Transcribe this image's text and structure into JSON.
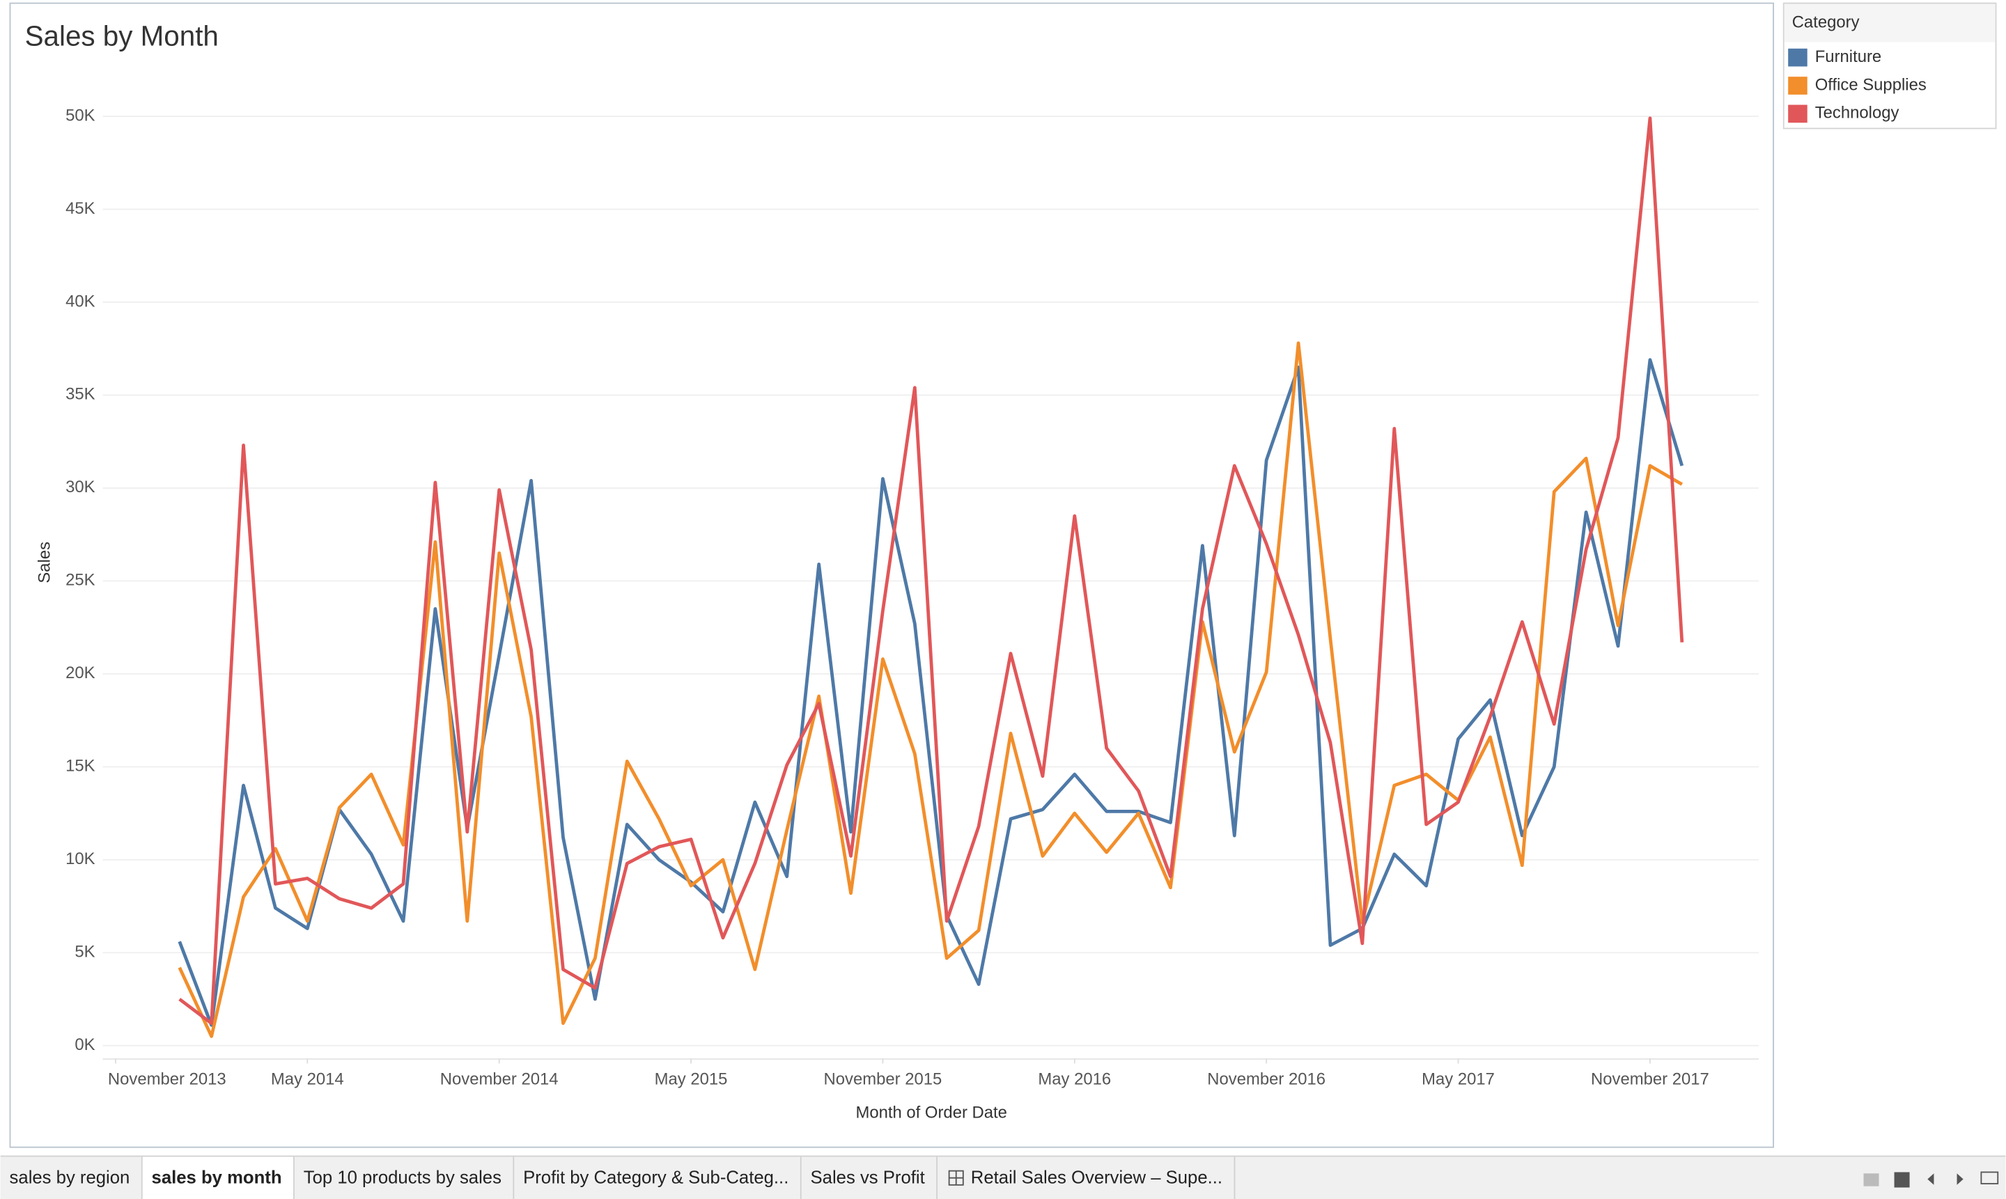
{
  "chart_data": {
    "type": "line",
    "title": "Sales by Month",
    "x_label": "Month of Order Date",
    "y_label": "Sales",
    "legend_title": "Category",
    "legend": "top-right",
    "grid": true,
    "x": [
      "2014-01",
      "2014-02",
      "2014-03",
      "2014-04",
      "2014-05",
      "2014-06",
      "2014-07",
      "2014-08",
      "2014-09",
      "2014-10",
      "2014-11",
      "2014-12",
      "2015-01",
      "2015-02",
      "2015-03",
      "2015-04",
      "2015-05",
      "2015-06",
      "2015-07",
      "2015-08",
      "2015-09",
      "2015-10",
      "2015-11",
      "2015-12",
      "2016-01",
      "2016-02",
      "2016-03",
      "2016-04",
      "2016-05",
      "2016-06",
      "2016-07",
      "2016-08",
      "2016-09",
      "2016-10",
      "2016-11",
      "2016-12",
      "2017-01",
      "2017-02",
      "2017-03",
      "2017-04",
      "2017-05",
      "2017-06",
      "2017-07",
      "2017-08",
      "2017-09",
      "2017-10",
      "2017-11",
      "2017-12"
    ],
    "xlim": [
      "2013-10",
      "2018-01"
    ],
    "xticks": [
      {
        "value": "2013-11",
        "label": "November 2013"
      },
      {
        "value": "2014-05",
        "label": "May 2014"
      },
      {
        "value": "2014-11",
        "label": "November 2014"
      },
      {
        "value": "2015-05",
        "label": "May 2015"
      },
      {
        "value": "2015-11",
        "label": "November 2015"
      },
      {
        "value": "2016-05",
        "label": "May 2016"
      },
      {
        "value": "2016-11",
        "label": "November 2016"
      },
      {
        "value": "2017-05",
        "label": "May 2017"
      },
      {
        "value": "2017-11",
        "label": "November 2017"
      }
    ],
    "ylim": [
      0,
      50000
    ],
    "yticks": [
      {
        "value": 0,
        "label": "0K"
      },
      {
        "value": 5000,
        "label": "5K"
      },
      {
        "value": 10000,
        "label": "10K"
      },
      {
        "value": 15000,
        "label": "15K"
      },
      {
        "value": 20000,
        "label": "20K"
      },
      {
        "value": 25000,
        "label": "25K"
      },
      {
        "value": 30000,
        "label": "30K"
      },
      {
        "value": 35000,
        "label": "35K"
      },
      {
        "value": 40000,
        "label": "40K"
      },
      {
        "value": 45000,
        "label": "45K"
      },
      {
        "value": 50000,
        "label": "50K"
      }
    ],
    "series": [
      {
        "name": "Furniture",
        "color": "#4e79a7",
        "values": [
          5600,
          1100,
          14000,
          7400,
          6300,
          12700,
          10300,
          6700,
          23500,
          11700,
          21000,
          30400,
          11200,
          2500,
          11900,
          10000,
          8800,
          7200,
          13100,
          9100,
          25900,
          11500,
          30500,
          22700,
          7000,
          3300,
          12200,
          12700,
          14600,
          12600,
          12600,
          12000,
          26900,
          11300,
          31500,
          36500,
          5400,
          6300,
          10300,
          8600,
          16500,
          18600,
          11300,
          15000,
          28700,
          21500,
          36900,
          31200
        ]
      },
      {
        "name": "Office Supplies",
        "color": "#f28e2b",
        "values": [
          4200,
          500,
          8000,
          10600,
          6700,
          12800,
          14600,
          10800,
          27100,
          6700,
          26500,
          17700,
          1200,
          4700,
          15300,
          12200,
          8600,
          10000,
          4100,
          11600,
          18800,
          8200,
          20800,
          15700,
          4700,
          6200,
          16800,
          10200,
          12500,
          10400,
          12500,
          8500,
          22800,
          15800,
          20100,
          37800,
          21900,
          6600,
          14000,
          14600,
          13200,
          16600,
          9700,
          29800,
          31600,
          22600,
          31200,
          30200
        ]
      },
      {
        "name": "Technology",
        "color": "#e15759",
        "values": [
          2500,
          1200,
          32300,
          8700,
          9000,
          7900,
          7400,
          8700,
          30300,
          11500,
          29900,
          21300,
          4100,
          3100,
          9800,
          10700,
          11100,
          5800,
          9800,
          15100,
          18400,
          10200,
          23400,
          35400,
          6700,
          11800,
          21100,
          14500,
          28500,
          16000,
          13700,
          9100,
          23500,
          31200,
          27000,
          22100,
          16300,
          5500,
          33200,
          11900,
          13100,
          17700,
          22800,
          17300,
          26700,
          32700,
          49900,
          21700
        ]
      }
    ]
  },
  "tabs": [
    "sales by region",
    "sales by month",
    "Top 10 products by sales",
    "Profit by Category & Sub-Categ...",
    "Sales vs Profit",
    "Retail Sales Overview – Supe..."
  ],
  "active_tab": 1
}
